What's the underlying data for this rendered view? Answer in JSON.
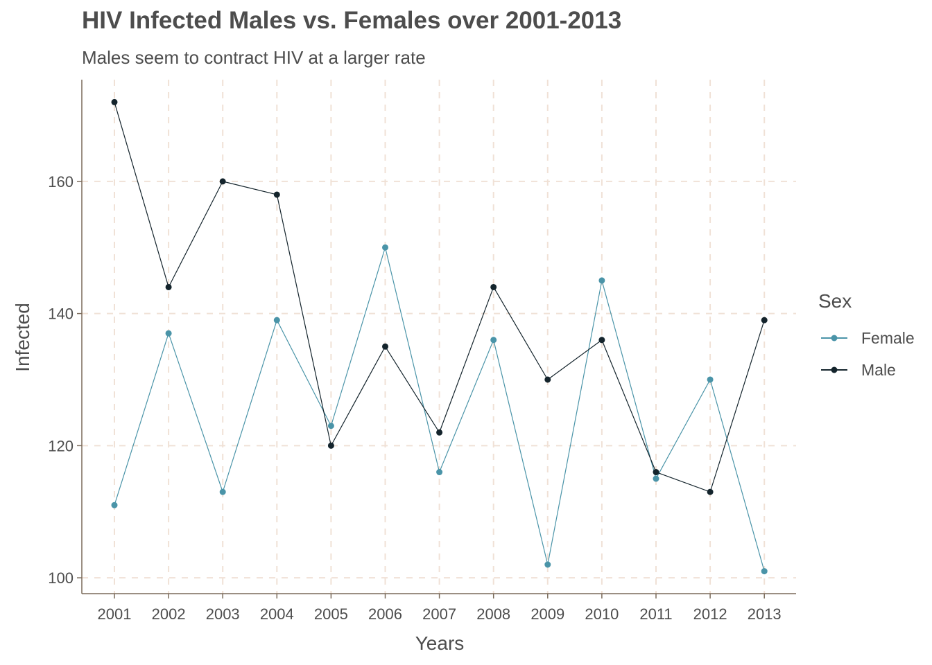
{
  "chart_data": {
    "type": "line",
    "title": "HIV Infected Males vs. Females over 2001-2013",
    "subtitle": "Males seem to contract HIV at a larger rate",
    "xlabel": "Years",
    "ylabel": "Infected",
    "x": [
      "2001",
      "2002",
      "2003",
      "2004",
      "2005",
      "2006",
      "2007",
      "2008",
      "2009",
      "2010",
      "2011",
      "2012",
      "2013"
    ],
    "yticks": [
      100,
      120,
      140,
      160
    ],
    "ylim": [
      97.6,
      175.4
    ],
    "grid": true,
    "legend": {
      "title": "Sex",
      "position": "right"
    },
    "series": [
      {
        "name": "Female",
        "color": "#4a94a8",
        "values": [
          111,
          137,
          113,
          139,
          123,
          150,
          116,
          136,
          102,
          145,
          115,
          130,
          101
        ]
      },
      {
        "name": "Male",
        "color": "#14242c",
        "values": [
          172,
          144,
          160,
          158,
          120,
          135,
          122,
          144,
          130,
          136,
          116,
          113,
          139
        ]
      }
    ]
  },
  "colors": {
    "grid": "#f0e1d6",
    "axis": "#7a6a5a",
    "text": "#4d4d4d"
  }
}
